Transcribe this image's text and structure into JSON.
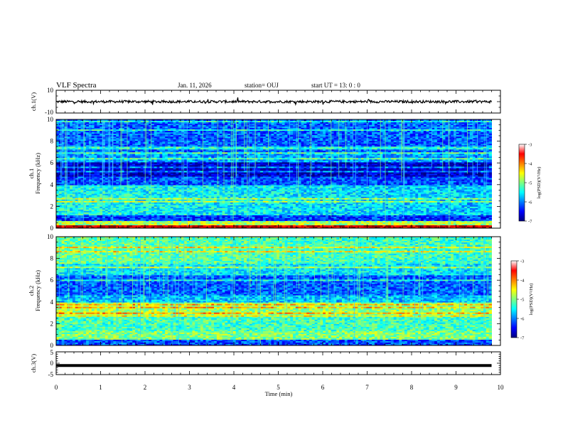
{
  "header": {
    "title": "VLF Spectra",
    "date": "Jan. 11, 2026",
    "station": "station= OUJ",
    "start": "start UT =  13: 0  : 0"
  },
  "chart_data": [
    {
      "type": "line",
      "panel": "ch1-waveform",
      "ylabel": "ch.1(V)",
      "ylim": [
        -10,
        10
      ],
      "yticks": [
        "10",
        "-10"
      ],
      "xlim": [
        0,
        10
      ],
      "series": [
        {
          "x": [
            0,
            9.8
          ],
          "values": [
            0,
            0
          ]
        }
      ]
    },
    {
      "type": "heatmap",
      "panel": "ch1-spectrogram",
      "ylabel_top": "ch.1",
      "ylabel": "Frequency  (kHz)",
      "ylim": [
        0,
        10
      ],
      "yticks": [
        "0",
        "2",
        "4",
        "6",
        "8",
        "10"
      ],
      "xlim": [
        0,
        10
      ],
      "data_xrange": [
        0,
        9.8
      ],
      "colorbar": {
        "label": "log(PSD)(V²/Hz)",
        "range": [
          -7,
          -3
        ],
        "ticks": [
          "-3",
          "-4",
          "-5",
          "-6",
          "-7"
        ]
      }
    },
    {
      "type": "heatmap",
      "panel": "ch2-spectrogram",
      "ylabel_top": "ch.2",
      "ylabel": "Frequency  (kHz)",
      "ylim": [
        0,
        10
      ],
      "yticks": [
        "0",
        "2",
        "4",
        "6",
        "8",
        "10"
      ],
      "xlim": [
        0,
        10
      ],
      "data_xrange": [
        0,
        9.8
      ],
      "colorbar": {
        "label": "log(PSD)(V²/Hz)",
        "range": [
          -7,
          -3
        ],
        "ticks": [
          "-3",
          "-4",
          "-5",
          "-6",
          "-7"
        ]
      }
    },
    {
      "type": "line",
      "panel": "ch3-waveform",
      "ylabel": "ch.3(V)",
      "ylim": [
        -5,
        5
      ],
      "yticks": [
        "5",
        "0",
        "-5"
      ],
      "xlim": [
        0,
        10
      ],
      "series": [
        {
          "x": [
            0,
            9.8
          ],
          "values": [
            -1,
            -1
          ]
        }
      ]
    }
  ],
  "xaxis": {
    "label": "Time  (min)",
    "ticks": [
      "0",
      "1",
      "2",
      "3",
      "4",
      "5",
      "6",
      "7",
      "8",
      "9",
      "10"
    ]
  }
}
